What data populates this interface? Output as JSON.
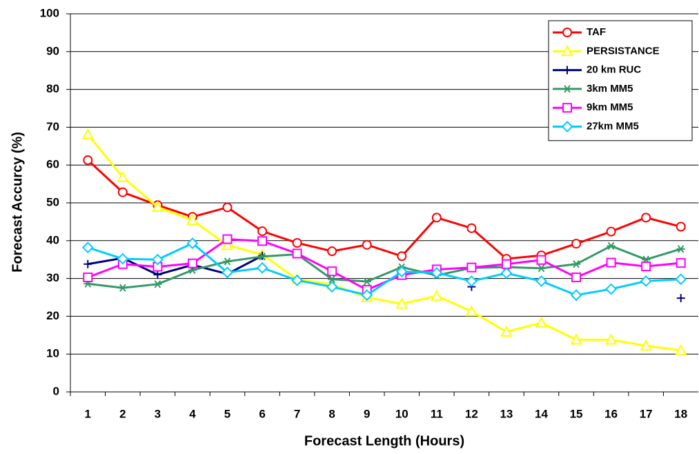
{
  "chart_data": {
    "type": "line",
    "y_label": "Forecast Accurcy (%)",
    "x_label": "Forecast Length (Hours)",
    "categories": [
      1,
      2,
      3,
      4,
      5,
      6,
      7,
      8,
      9,
      10,
      11,
      12,
      13,
      14,
      15,
      16,
      17,
      18
    ],
    "ylim": [
      0,
      100
    ],
    "yticks": [
      0,
      10,
      20,
      30,
      40,
      50,
      60,
      70,
      80,
      90,
      100
    ],
    "grid": true,
    "legend": "top-right",
    "series": [
      {
        "name": "TAF",
        "color": "#ff0000",
        "marker": "circle",
        "values": [
          61.3,
          52.8,
          49.4,
          46.3,
          48.8,
          42.5,
          39.4,
          37.2,
          38.9,
          35.9,
          46.1,
          43.3,
          35.2,
          36.1,
          39.2,
          42.4,
          46.1,
          43.7
        ]
      },
      {
        "name": "PERSISTANCE",
        "color": "#ffff00",
        "marker": "triangle",
        "values": [
          68.1,
          56.8,
          48.9,
          45.4,
          38.8,
          36.3,
          29.8,
          28.4,
          25.0,
          23.3,
          25.4,
          21.3,
          15.9,
          18.3,
          13.8,
          13.8,
          12.2,
          11.0
        ]
      },
      {
        "name": "20 km RUC",
        "color": "#000080",
        "marker": "plus",
        "values": [
          33.8,
          35.4,
          31.0,
          33.6,
          31.2,
          36.0,
          null,
          null,
          null,
          null,
          null,
          27.8,
          null,
          null,
          25.2,
          null,
          null,
          24.8
        ]
      },
      {
        "name": "3km MM5",
        "color": "#339966",
        "marker": "star",
        "values": [
          28.6,
          27.5,
          28.5,
          32.2,
          34.5,
          35.8,
          36.4,
          29.8,
          29.2,
          33.0,
          30.8,
          32.8,
          33.0,
          32.7,
          33.8,
          38.6,
          35.0,
          37.8
        ]
      },
      {
        "name": "9km MM5",
        "color": "#ff00ff",
        "marker": "square",
        "values": [
          30.3,
          33.8,
          33.1,
          34.0,
          40.4,
          39.9,
          36.6,
          31.9,
          27.0,
          30.9,
          32.4,
          32.9,
          33.8,
          34.9,
          30.3,
          34.2,
          33.2,
          34.1
        ]
      },
      {
        "name": "27km MM5",
        "color": "#00ccff",
        "marker": "diamond",
        "values": [
          38.2,
          35.2,
          35.0,
          39.3,
          31.6,
          32.8,
          29.5,
          27.8,
          25.6,
          31.8,
          31.5,
          29.3,
          31.4,
          29.3,
          25.6,
          27.2,
          29.3,
          29.8
        ]
      }
    ]
  }
}
